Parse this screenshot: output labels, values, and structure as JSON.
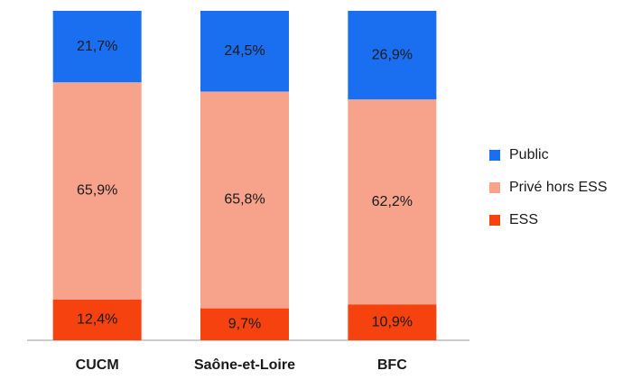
{
  "chart_data": {
    "type": "stacked_bar",
    "categories": [
      "CUCM",
      "Saône-et-Loire",
      "BFC"
    ],
    "series": [
      {
        "name": "ESS",
        "color": "#f5420f",
        "values": [
          12.4,
          9.7,
          10.9
        ],
        "value_labels": [
          "12,4%",
          "9,7%",
          "10,9%"
        ]
      },
      {
        "name": "Privé hors ESS",
        "color": "#f7a38b",
        "values": [
          65.9,
          65.8,
          62.2
        ],
        "value_labels": [
          "65,9%",
          "65,8%",
          "62,2%"
        ]
      },
      {
        "name": "Public",
        "color": "#1a6ff0",
        "values": [
          21.7,
          24.5,
          26.9
        ],
        "value_labels": [
          "21,7%",
          "24,5%",
          "26,9%"
        ]
      }
    ],
    "ylim": [
      0,
      100
    ],
    "legend": "right"
  }
}
